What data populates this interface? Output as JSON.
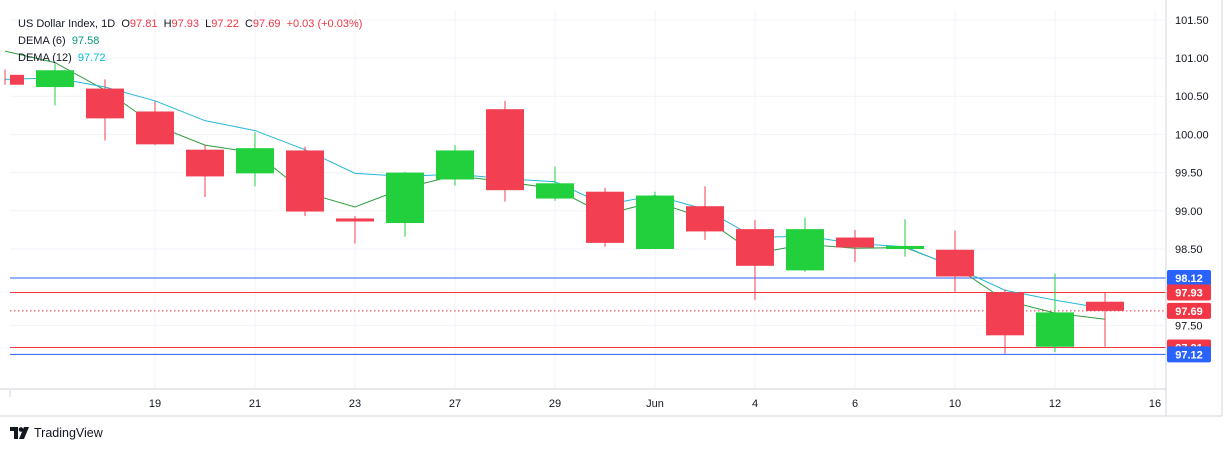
{
  "legend": {
    "symbol": "US Dollar Index, 1D",
    "o_label": "O",
    "o_value": "97.81",
    "h_label": "H",
    "h_value": "97.93",
    "l_label": "L",
    "l_value": "97.22",
    "c_label": "C",
    "c_value": "97.69",
    "change": "+0.03 (+0.03%)",
    "dema6_label": "DEMA (6)",
    "dema6_value": "97.58",
    "dema12_label": "DEMA (12)",
    "dema12_value": "97.72"
  },
  "brand": {
    "name": "TradingView"
  },
  "colors": {
    "up": "#22d03e",
    "down": "#f23f52",
    "dema6": "#2e9e3e",
    "dema12": "#26b6d6",
    "blue_line": "#2962ff",
    "red_line": "#f23645"
  },
  "chart_data": {
    "type": "candlestick",
    "title": "US Dollar Index, 1D",
    "xlabel": "",
    "ylabel": "",
    "ylim": [
      97.06,
      101.55
    ],
    "y_ticks": [
      "101.50",
      "101.00",
      "100.50",
      "100.00",
      "99.50",
      "99.00",
      "98.50",
      "97.50"
    ],
    "x_ticks": [
      {
        "index": 3,
        "label": "19"
      },
      {
        "index": 5,
        "label": "21"
      },
      {
        "index": 7,
        "label": "23"
      },
      {
        "index": 9,
        "label": "27"
      },
      {
        "index": 11,
        "label": "29"
      },
      {
        "index": 13,
        "label": "Jun"
      },
      {
        "index": 15,
        "label": "4"
      },
      {
        "index": 17,
        "label": "6"
      },
      {
        "index": 19,
        "label": "10"
      },
      {
        "index": 21,
        "label": "12"
      },
      {
        "index": 23,
        "label": "16"
      }
    ],
    "candles": [
      {
        "o": 100.78,
        "h": 100.85,
        "l": 100.65,
        "c": 100.65
      },
      {
        "o": 100.62,
        "h": 100.92,
        "l": 100.38,
        "c": 100.84
      },
      {
        "o": 100.6,
        "h": 100.72,
        "l": 99.92,
        "c": 100.21
      },
      {
        "o": 100.3,
        "h": 100.43,
        "l": 99.86,
        "c": 99.87
      },
      {
        "o": 99.8,
        "h": 99.86,
        "l": 99.18,
        "c": 99.45
      },
      {
        "o": 99.49,
        "h": 100.03,
        "l": 99.32,
        "c": 99.82
      },
      {
        "o": 99.79,
        "h": 99.84,
        "l": 98.93,
        "c": 98.99
      },
      {
        "o": 98.9,
        "h": 98.93,
        "l": 98.57,
        "c": 98.86
      },
      {
        "o": 98.84,
        "h": 99.51,
        "l": 98.66,
        "c": 99.5
      },
      {
        "o": 99.41,
        "h": 99.86,
        "l": 99.33,
        "c": 99.79
      },
      {
        "o": 100.33,
        "h": 100.44,
        "l": 99.12,
        "c": 99.27
      },
      {
        "o": 99.16,
        "h": 99.58,
        "l": 99.13,
        "c": 99.36
      },
      {
        "o": 99.25,
        "h": 99.3,
        "l": 98.53,
        "c": 98.58
      },
      {
        "o": 98.5,
        "h": 99.25,
        "l": 98.5,
        "c": 99.2
      },
      {
        "o": 99.06,
        "h": 99.32,
        "l": 98.62,
        "c": 98.73
      },
      {
        "o": 98.76,
        "h": 98.88,
        "l": 97.83,
        "c": 98.28
      },
      {
        "o": 98.22,
        "h": 98.91,
        "l": 98.2,
        "c": 98.76
      },
      {
        "o": 98.65,
        "h": 98.75,
        "l": 98.33,
        "c": 98.52
      },
      {
        "o": 98.5,
        "h": 98.89,
        "l": 98.4,
        "c": 98.54
      },
      {
        "o": 98.49,
        "h": 98.74,
        "l": 97.94,
        "c": 98.14
      },
      {
        "o": 97.93,
        "h": 97.97,
        "l": 97.13,
        "c": 97.37
      },
      {
        "o": 97.22,
        "h": 98.18,
        "l": 97.15,
        "c": 97.67
      },
      {
        "o": 97.81,
        "h": 97.93,
        "l": 97.22,
        "c": 97.69
      }
    ],
    "series": [
      {
        "name": "DEMA (6)",
        "values": [
          101.09,
          100.94,
          100.58,
          100.12,
          99.86,
          99.76,
          99.24,
          99.05,
          99.3,
          99.46,
          99.38,
          99.29,
          98.95,
          99.12,
          98.9,
          98.44,
          98.56,
          98.51,
          98.52,
          98.27,
          97.83,
          97.66,
          97.58
        ]
      },
      {
        "name": "DEMA (12)",
        "values": [
          100.72,
          100.74,
          100.62,
          100.44,
          100.18,
          100.05,
          99.8,
          99.49,
          99.45,
          99.48,
          99.42,
          99.38,
          99.08,
          99.2,
          99.02,
          98.65,
          98.67,
          98.57,
          98.53,
          98.26,
          97.96,
          97.83,
          97.72
        ]
      }
    ],
    "horizontal_lines": [
      {
        "value": 98.12,
        "label": "98.12",
        "kind": "blue"
      },
      {
        "value": 97.93,
        "label": "97.93",
        "kind": "red"
      },
      {
        "value": 97.69,
        "label": "97.69",
        "kind": "red-dotted"
      },
      {
        "value": 97.21,
        "label": "97.21",
        "kind": "red"
      },
      {
        "value": 97.12,
        "label": "97.12",
        "kind": "blue"
      }
    ],
    "grid": true
  }
}
